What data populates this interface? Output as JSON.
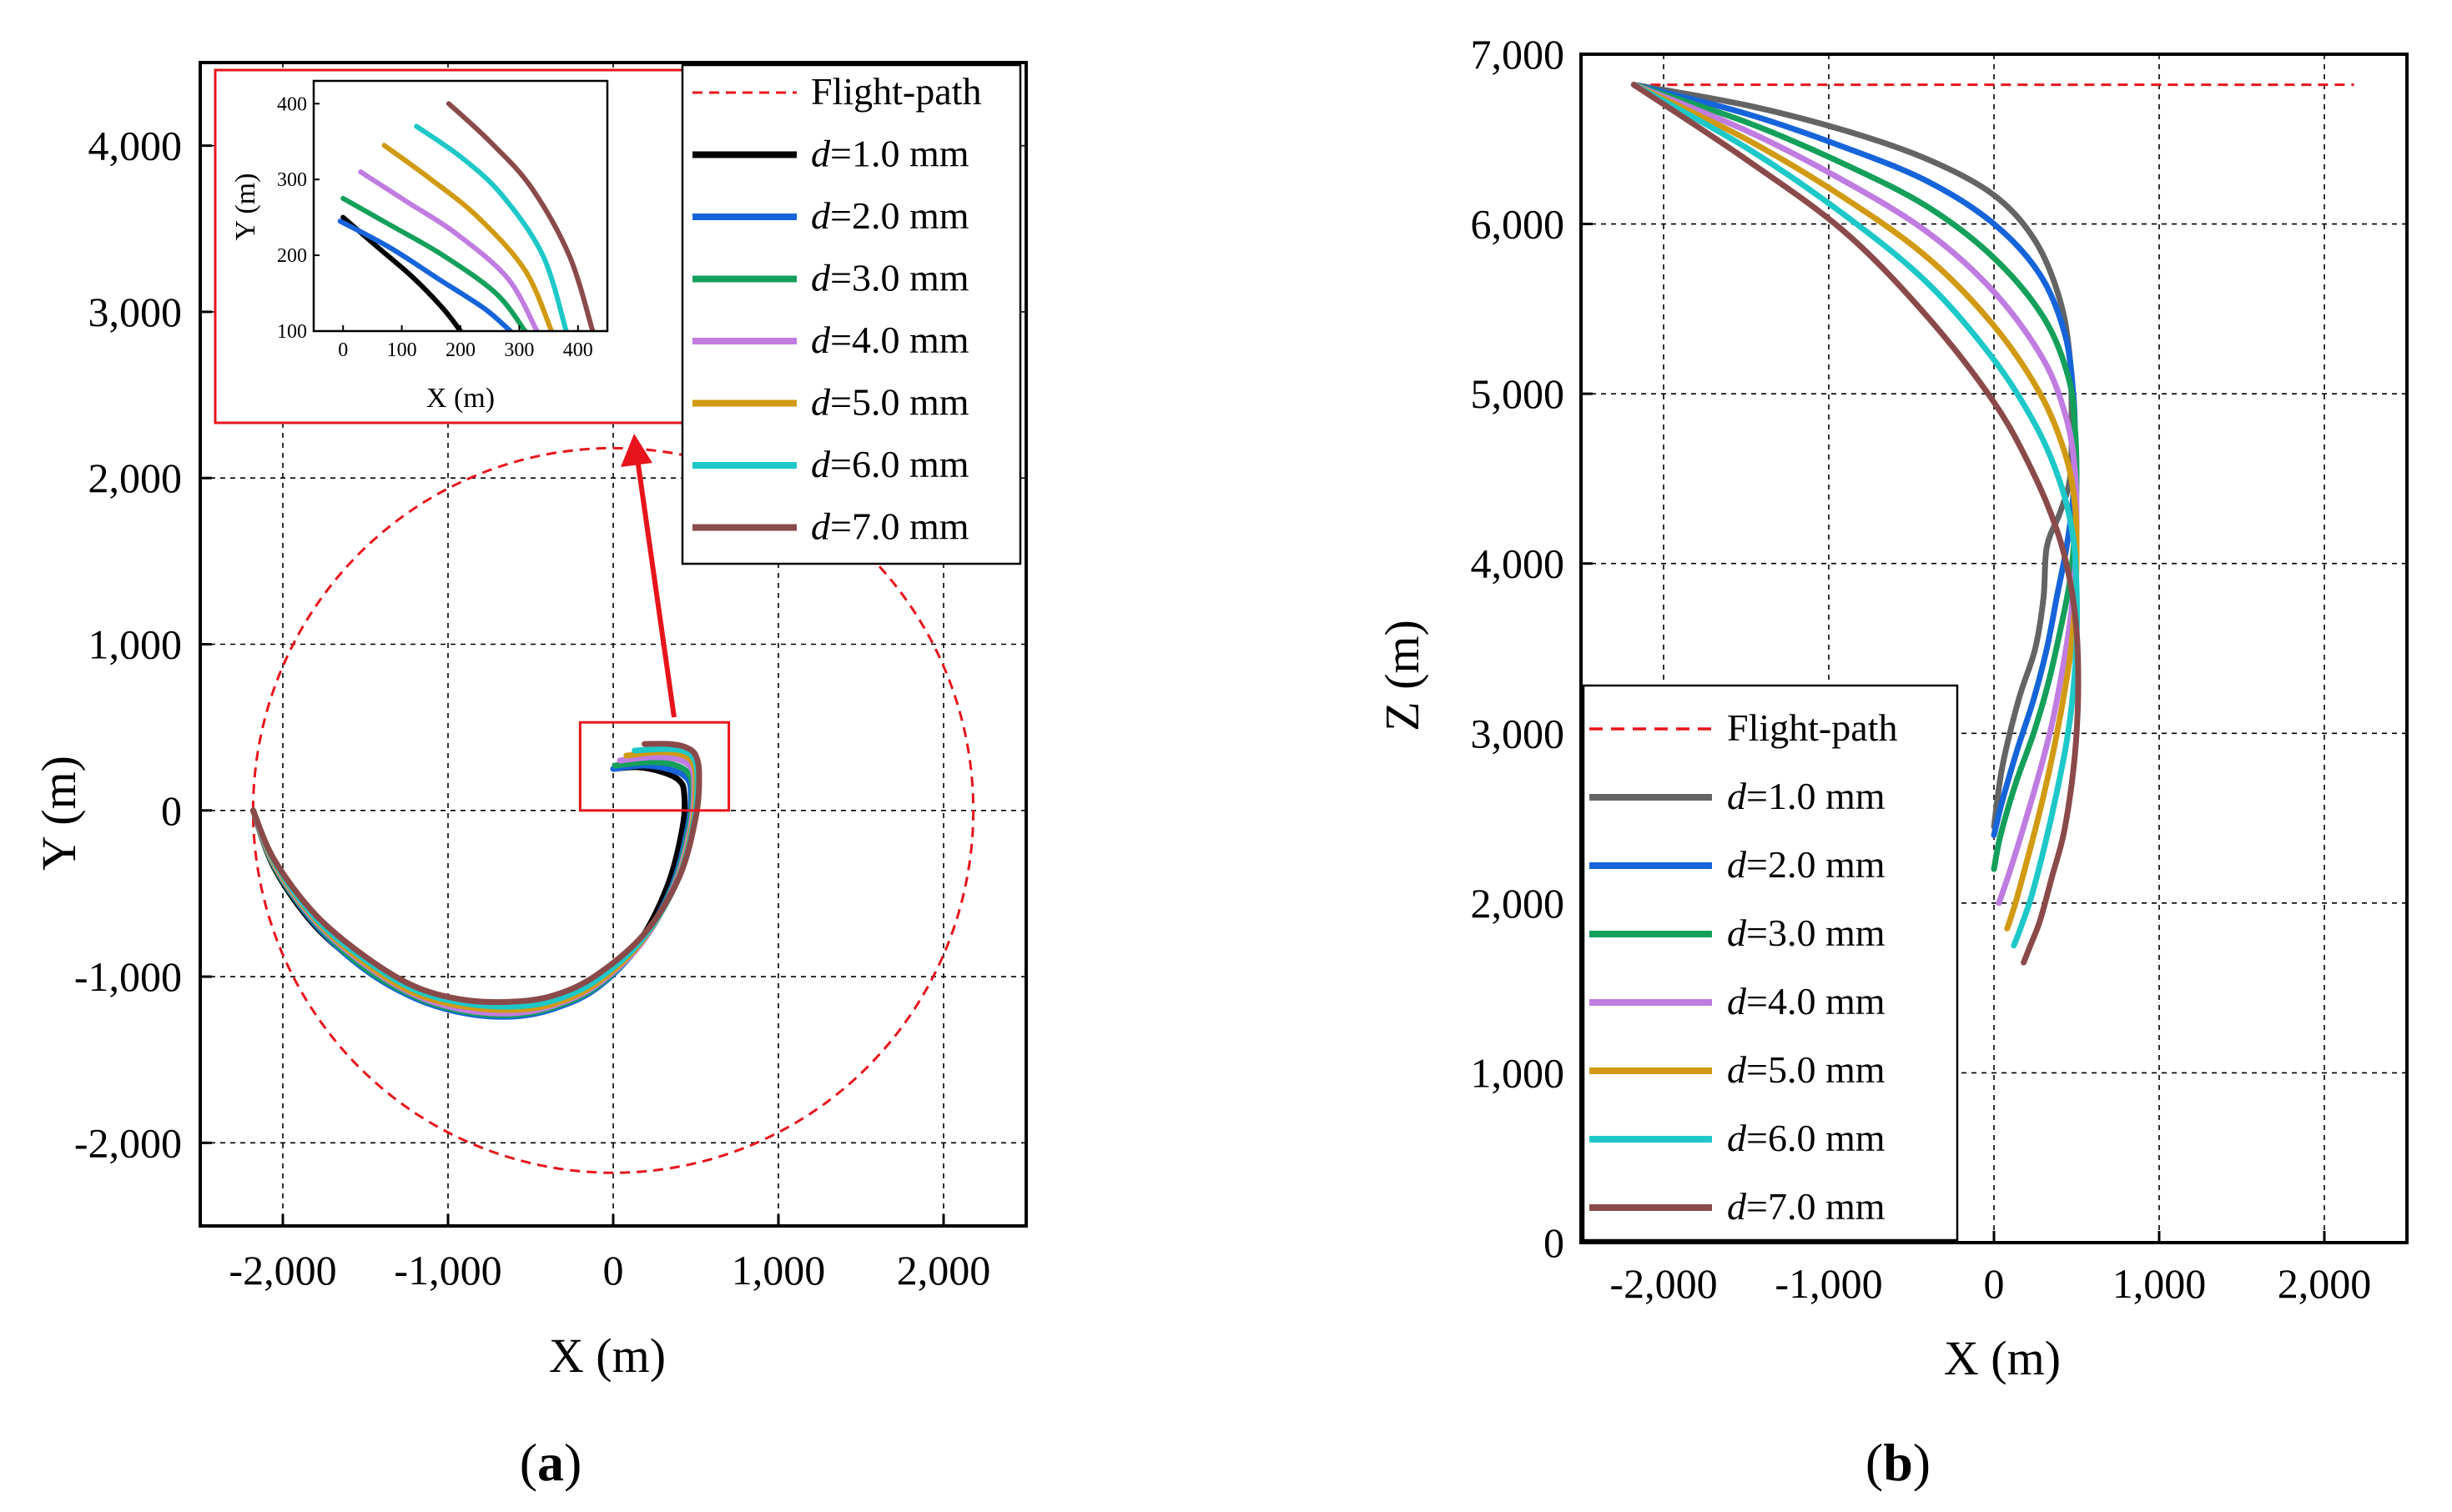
{
  "figure": {
    "panel_a_label": "a",
    "panel_b_label": "b"
  },
  "chart_data": [
    {
      "id": "a",
      "type": "line",
      "xlabel": "X (m)",
      "ylabel": "Y (m)",
      "xlim": [
        -2500,
        2500
      ],
      "ylim": [
        -2500,
        4500
      ],
      "xticks": [
        -2000,
        -1000,
        0,
        1000,
        2000
      ],
      "xtick_labels": [
        "-2,000",
        "-1,000",
        "0",
        "1,000",
        "2,000"
      ],
      "yticks": [
        -2000,
        -1000,
        0,
        1000,
        2000,
        3000,
        4000
      ],
      "ytick_labels": [
        "-2,000",
        "-1,000",
        "0",
        "1,000",
        "2,000",
        "3,000",
        "4,000"
      ],
      "grid": true,
      "legend_position": "top-right",
      "flight_path": {
        "name": "Flight-path",
        "type": "circle",
        "center": [
          0,
          0
        ],
        "radius": 2180,
        "color": "#e8141b"
      },
      "series": [
        {
          "name": "d=1.0 mm",
          "italic": "d",
          "rest": "=1.0 mm",
          "color": "#000000",
          "x": [
            -2180,
            -2050,
            -1800,
            -1500,
            -1200,
            -900,
            -600,
            -350,
            -100,
            150,
            330,
            420,
            430,
            400,
            300,
            150,
            0
          ],
          "y": [
            0,
            -350,
            -700,
            -950,
            -1120,
            -1200,
            -1220,
            -1170,
            -1050,
            -800,
            -450,
            -100,
            100,
            180,
            230,
            260,
            250
          ]
        },
        {
          "name": "d=2.0 mm",
          "italic": "d",
          "rest": "=2.0 mm",
          "color": "#1664d9",
          "x": [
            -2180,
            -2050,
            -1800,
            -1500,
            -1200,
            -900,
            -600,
            -350,
            -100,
            150,
            350,
            450,
            470,
            440,
            330,
            180,
            0
          ],
          "y": [
            0,
            -340,
            -690,
            -960,
            -1130,
            -1220,
            -1240,
            -1190,
            -1070,
            -820,
            -470,
            -110,
            110,
            200,
            250,
            270,
            250
          ]
        },
        {
          "name": "d=3.0 mm",
          "italic": "d",
          "rest": "=3.0 mm",
          "color": "#14a05a",
          "x": [
            -2180,
            -2050,
            -1800,
            -1500,
            -1200,
            -900,
            -600,
            -350,
            -100,
            160,
            360,
            460,
            480,
            450,
            350,
            200,
            10
          ],
          "y": [
            0,
            -340,
            -680,
            -950,
            -1120,
            -1210,
            -1230,
            -1180,
            -1060,
            -810,
            -460,
            -100,
            130,
            230,
            280,
            290,
            270
          ]
        },
        {
          "name": "d=4.0 mm",
          "italic": "d",
          "rest": "=4.0 mm",
          "color": "#c07ce0",
          "x": [
            -2180,
            -2050,
            -1800,
            -1500,
            -1200,
            -900,
            -600,
            -350,
            -100,
            170,
            370,
            470,
            490,
            470,
            380,
            230,
            40
          ],
          "y": [
            0,
            -330,
            -670,
            -930,
            -1110,
            -1200,
            -1220,
            -1170,
            -1050,
            -800,
            -450,
            -90,
            150,
            260,
            310,
            320,
            300
          ]
        },
        {
          "name": "d=5.0 mm",
          "italic": "d",
          "rest": "=5.0 mm",
          "color": "#d19a12",
          "x": [
            -2180,
            -2050,
            -1800,
            -1500,
            -1200,
            -900,
            -600,
            -350,
            -100,
            170,
            380,
            480,
            500,
            480,
            400,
            260,
            80
          ],
          "y": [
            0,
            -320,
            -660,
            -920,
            -1100,
            -1180,
            -1200,
            -1160,
            -1040,
            -790,
            -440,
            -80,
            170,
            290,
            340,
            350,
            330
          ]
        },
        {
          "name": "d=6.0 mm",
          "italic": "d",
          "rest": "=6.0 mm",
          "color": "#1ec8c8",
          "x": [
            -2180,
            -2050,
            -1800,
            -1500,
            -1200,
            -900,
            -600,
            -350,
            -100,
            180,
            390,
            490,
            510,
            490,
            420,
            300,
            130
          ],
          "y": [
            0,
            -310,
            -650,
            -900,
            -1080,
            -1160,
            -1180,
            -1140,
            -1020,
            -770,
            -420,
            -60,
            190,
            310,
            360,
            370,
            360
          ]
        },
        {
          "name": "d=7.0 mm",
          "italic": "d",
          "rest": "=7.0 mm",
          "color": "#8b4a4a",
          "x": [
            -2180,
            -2050,
            -1800,
            -1500,
            -1200,
            -900,
            -600,
            -350,
            -100,
            190,
            400,
            500,
            520,
            500,
            440,
            340,
            190
          ],
          "y": [
            0,
            -300,
            -630,
            -880,
            -1060,
            -1140,
            -1150,
            -1110,
            -990,
            -740,
            -400,
            -40,
            210,
            330,
            380,
            400,
            400
          ]
        }
      ],
      "inset": {
        "xlabel": "X (m)",
        "ylabel": "Y (m)",
        "xlim": [
          -50,
          450
        ],
        "ylim": [
          100,
          430
        ],
        "xticks": [
          0,
          100,
          200,
          300,
          400
        ],
        "xtick_labels": [
          "0",
          "100",
          "200",
          "300",
          "400"
        ],
        "yticks": [
          100,
          200,
          300,
          400
        ],
        "ytick_labels": [
          "100",
          "200",
          "300",
          "400"
        ],
        "source_box": {
          "x": [
            -200,
            700
          ],
          "y": [
            0,
            530
          ]
        },
        "series_x": [
          [
            0,
            60,
            120,
            170,
            200
          ],
          [
            -5,
            80,
            160,
            240,
            285
          ],
          [
            0,
            80,
            170,
            260,
            310
          ],
          [
            30,
            110,
            190,
            280,
            330
          ],
          [
            70,
            150,
            230,
            310,
            355
          ],
          [
            125,
            200,
            270,
            340,
            380
          ],
          [
            180,
            250,
            320,
            385,
            425
          ]
        ],
        "series_y": [
          [
            250,
            210,
            170,
            130,
            100
          ],
          [
            245,
            210,
            170,
            130,
            100
          ],
          [
            275,
            240,
            200,
            150,
            100
          ],
          [
            310,
            270,
            230,
            170,
            100
          ],
          [
            345,
            300,
            250,
            180,
            100
          ],
          [
            370,
            330,
            280,
            200,
            100
          ],
          [
            400,
            350,
            290,
            200,
            100
          ]
        ]
      }
    },
    {
      "id": "b",
      "type": "line",
      "xlabel": "X (m)",
      "ylabel": "Z (m)",
      "xlim": [
        -2500,
        2500
      ],
      "ylim": [
        0,
        7000
      ],
      "xticks": [
        -2000,
        -1000,
        0,
        1000,
        2000
      ],
      "xtick_labels": [
        "-2,000",
        "-1,000",
        "0",
        "1,000",
        "2,000"
      ],
      "yticks": [
        0,
        1000,
        2000,
        3000,
        4000,
        5000,
        6000,
        7000
      ],
      "ytick_labels": [
        "0",
        "1,000",
        "2,000",
        "3,000",
        "4,000",
        "5,000",
        "6,000",
        "7,000"
      ],
      "grid": true,
      "legend_position": "bottom-left",
      "flight_path": {
        "name": "Flight-path",
        "type": "horizontal",
        "y": 6820,
        "x": [
          -2180,
          2180
        ],
        "color": "#e8141b"
      },
      "series": [
        {
          "name": "d=1.0 mm",
          "italic": "d",
          "rest": "=1.0 mm",
          "color": "#646464",
          "x": [
            -2180,
            -1500,
            -900,
            -400,
            0,
            250,
            400,
            460,
            470,
            460,
            400,
            320,
            300,
            250,
            150,
            50,
            0
          ],
          "z": [
            6820,
            6700,
            6550,
            6380,
            6170,
            5900,
            5550,
            5200,
            4800,
            4500,
            4300,
            4100,
            3800,
            3500,
            3200,
            2800,
            2450
          ]
        },
        {
          "name": "d=2.0 mm",
          "italic": "d",
          "rest": "=2.0 mm",
          "color": "#1664d9",
          "x": [
            -2180,
            -1500,
            -900,
            -400,
            0,
            280,
            430,
            480,
            490,
            480,
            440,
            380,
            320,
            240,
            140,
            50,
            0
          ],
          "z": [
            6820,
            6650,
            6450,
            6250,
            6000,
            5700,
            5350,
            5000,
            4700,
            4400,
            4100,
            3800,
            3500,
            3200,
            2900,
            2600,
            2400
          ]
        },
        {
          "name": "d=3.0 mm",
          "italic": "d",
          "rest": "=3.0 mm",
          "color": "#14a05a",
          "x": [
            -2180,
            -1500,
            -900,
            -400,
            0,
            300,
            450,
            490,
            500,
            490,
            460,
            400,
            330,
            240,
            130,
            40,
            0
          ],
          "z": [
            6820,
            6600,
            6350,
            6100,
            5800,
            5450,
            5100,
            4800,
            4500,
            4200,
            3900,
            3600,
            3300,
            3000,
            2700,
            2400,
            2200
          ]
        },
        {
          "name": "d=4.0 mm",
          "italic": "d",
          "rest": "=4.0 mm",
          "color": "#c07ce0",
          "x": [
            -2180,
            -1500,
            -900,
            -400,
            0,
            300,
            440,
            490,
            500,
            490,
            460,
            410,
            350,
            270,
            180,
            100,
            30
          ],
          "z": [
            6820,
            6550,
            6250,
            5950,
            5600,
            5200,
            4850,
            4550,
            4250,
            3950,
            3650,
            3350,
            3050,
            2750,
            2450,
            2200,
            2000
          ]
        },
        {
          "name": "d=5.0 mm",
          "italic": "d",
          "rest": "=5.0 mm",
          "color": "#d19a12",
          "x": [
            -2180,
            -1500,
            -900,
            -400,
            0,
            280,
            430,
            490,
            500,
            490,
            460,
            410,
            350,
            280,
            200,
            130,
            80
          ],
          "z": [
            6820,
            6500,
            6150,
            5800,
            5400,
            5000,
            4650,
            4350,
            4050,
            3750,
            3450,
            3150,
            2850,
            2550,
            2250,
            2000,
            1850
          ]
        },
        {
          "name": "d=6.0 mm",
          "italic": "d",
          "rest": "=6.0 mm",
          "color": "#1ec8c8",
          "x": [
            -2180,
            -1500,
            -900,
            -400,
            0,
            260,
            410,
            480,
            500,
            500,
            480,
            440,
            380,
            310,
            230,
            160,
            120
          ],
          "z": [
            6820,
            6450,
            6050,
            5650,
            5200,
            4800,
            4450,
            4150,
            3850,
            3550,
            3250,
            2950,
            2650,
            2350,
            2050,
            1850,
            1750
          ]
        },
        {
          "name": "d=7.0 mm",
          "italic": "d",
          "rest": "=7.0 mm",
          "color": "#8b4a4a",
          "x": [
            -2180,
            -1500,
            -900,
            -400,
            0,
            230,
            380,
            460,
            500,
            510,
            500,
            470,
            420,
            350,
            280,
            220,
            180
          ],
          "z": [
            6820,
            6380,
            5950,
            5450,
            4950,
            4550,
            4200,
            3900,
            3600,
            3300,
            3000,
            2700,
            2400,
            2150,
            1900,
            1750,
            1650
          ]
        }
      ]
    }
  ]
}
